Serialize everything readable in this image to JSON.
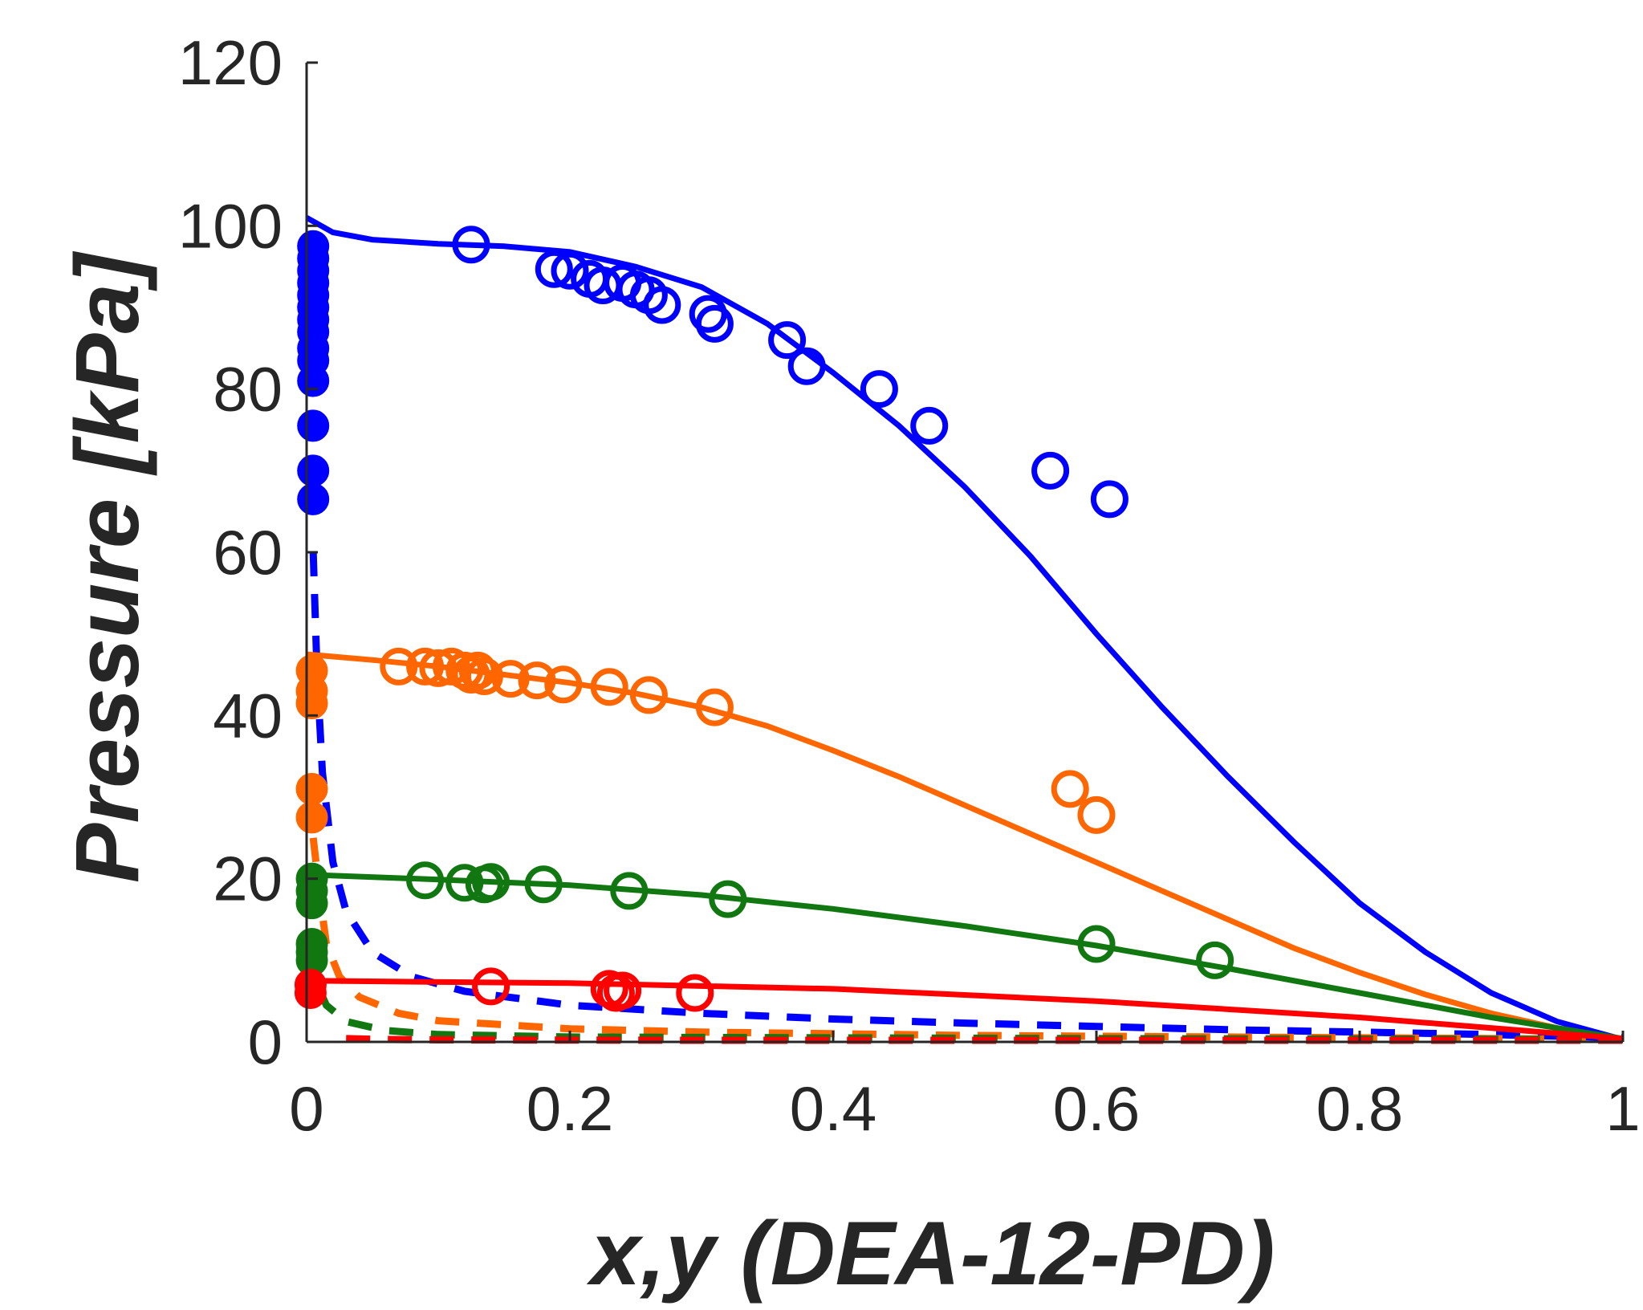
{
  "chart_data": {
    "type": "line",
    "title": "",
    "xlabel": "x,y (DEA-12-PD)",
    "ylabel": "Pressure [kPa]",
    "xlim": [
      0,
      1
    ],
    "ylim": [
      0,
      120
    ],
    "xticks": [
      0,
      0.2,
      0.4,
      0.6,
      0.8,
      1
    ],
    "xtick_labels": [
      "0",
      "0.2",
      "0.4",
      "0.6",
      "0.8",
      "1"
    ],
    "yticks": [
      0,
      20,
      40,
      60,
      80,
      100,
      120
    ],
    "ytick_labels": [
      "0",
      "20",
      "40",
      "60",
      "80",
      "100",
      "120"
    ],
    "series": [
      {
        "name": "blue",
        "color": "#0000ff",
        "bubble_curve": [
          [
            0,
            101
          ],
          [
            0.02,
            99.2
          ],
          [
            0.05,
            98.3
          ],
          [
            0.1,
            97.8
          ],
          [
            0.15,
            97.5
          ],
          [
            0.2,
            96.8
          ],
          [
            0.25,
            95.0
          ],
          [
            0.3,
            92.5
          ],
          [
            0.35,
            88.0
          ],
          [
            0.4,
            82.0
          ],
          [
            0.45,
            75.5
          ],
          [
            0.5,
            68.0
          ],
          [
            0.55,
            59.5
          ],
          [
            0.6,
            50.0
          ],
          [
            0.65,
            41.0
          ],
          [
            0.7,
            32.5
          ],
          [
            0.75,
            24.5
          ],
          [
            0.8,
            17.0
          ],
          [
            0.85,
            11.0
          ],
          [
            0.9,
            6.0
          ],
          [
            0.95,
            2.5
          ],
          [
            1,
            0.3
          ]
        ],
        "dew_curve": [
          [
            0.005,
            60
          ],
          [
            0.008,
            45
          ],
          [
            0.012,
            33
          ],
          [
            0.02,
            22
          ],
          [
            0.03,
            16
          ],
          [
            0.05,
            11
          ],
          [
            0.08,
            8
          ],
          [
            0.12,
            6.2
          ],
          [
            0.2,
            4.5
          ],
          [
            0.3,
            3.5
          ],
          [
            0.4,
            2.8
          ],
          [
            0.5,
            2.3
          ],
          [
            0.6,
            1.9
          ],
          [
            0.7,
            1.5
          ],
          [
            0.8,
            1.2
          ],
          [
            0.9,
            0.9
          ],
          [
            1,
            0.5
          ]
        ],
        "liquid_points": [
          [
            0.125,
            97.7
          ],
          [
            0.188,
            94.7
          ],
          [
            0.2,
            94.5
          ],
          [
            0.215,
            93.5
          ],
          [
            0.225,
            92.7
          ],
          [
            0.24,
            93.0
          ],
          [
            0.25,
            92.2
          ],
          [
            0.26,
            91.5
          ],
          [
            0.27,
            90.3
          ],
          [
            0.305,
            89.2
          ],
          [
            0.31,
            88.0
          ],
          [
            0.365,
            86.0
          ],
          [
            0.38,
            82.8
          ],
          [
            0.435,
            80.0
          ],
          [
            0.473,
            75.5
          ],
          [
            0.565,
            70.0
          ],
          [
            0.61,
            66.5
          ]
        ],
        "vapor_points": [
          [
            0.005,
            97.5
          ],
          [
            0.005,
            96.0
          ],
          [
            0.005,
            94.5
          ],
          [
            0.005,
            93.0
          ],
          [
            0.005,
            91.5
          ],
          [
            0.005,
            90.0
          ],
          [
            0.005,
            88.5
          ],
          [
            0.005,
            87.0
          ],
          [
            0.005,
            85.0
          ],
          [
            0.005,
            83.5
          ],
          [
            0.005,
            81.0
          ],
          [
            0.005,
            75.5
          ],
          [
            0.005,
            70.0
          ],
          [
            0.005,
            66.5
          ]
        ]
      },
      {
        "name": "orange",
        "color": "#ff6600",
        "bubble_curve": [
          [
            0,
            47.5
          ],
          [
            0.05,
            46.8
          ],
          [
            0.1,
            46.0
          ],
          [
            0.15,
            45.0
          ],
          [
            0.2,
            44.0
          ],
          [
            0.25,
            42.7
          ],
          [
            0.3,
            41.0
          ],
          [
            0.35,
            38.7
          ],
          [
            0.4,
            35.7
          ],
          [
            0.45,
            32.5
          ],
          [
            0.5,
            29.0
          ],
          [
            0.55,
            25.5
          ],
          [
            0.6,
            22.0
          ],
          [
            0.65,
            18.5
          ],
          [
            0.7,
            15.0
          ],
          [
            0.75,
            11.5
          ],
          [
            0.8,
            8.5
          ],
          [
            0.85,
            5.8
          ],
          [
            0.9,
            3.5
          ],
          [
            0.95,
            1.7
          ],
          [
            1,
            0.3
          ]
        ],
        "dew_curve": [
          [
            0.005,
            25
          ],
          [
            0.01,
            18
          ],
          [
            0.015,
            12
          ],
          [
            0.025,
            8
          ],
          [
            0.04,
            5.5
          ],
          [
            0.07,
            3.5
          ],
          [
            0.1,
            2.6
          ],
          [
            0.2,
            1.6
          ],
          [
            0.3,
            1.2
          ],
          [
            0.4,
            1.0
          ],
          [
            0.5,
            0.8
          ],
          [
            0.6,
            0.7
          ],
          [
            0.7,
            0.6
          ],
          [
            0.8,
            0.5
          ],
          [
            0.9,
            0.4
          ],
          [
            1,
            0.3
          ]
        ],
        "liquid_points": [
          [
            0.07,
            46.0
          ],
          [
            0.09,
            46.0
          ],
          [
            0.1,
            45.8
          ],
          [
            0.11,
            46.0
          ],
          [
            0.12,
            45.5
          ],
          [
            0.125,
            45.0
          ],
          [
            0.13,
            45.5
          ],
          [
            0.135,
            44.8
          ],
          [
            0.155,
            44.5
          ],
          [
            0.175,
            44.3
          ],
          [
            0.195,
            43.8
          ],
          [
            0.23,
            43.5
          ],
          [
            0.26,
            42.5
          ],
          [
            0.31,
            41.0
          ],
          [
            0.58,
            31.0
          ],
          [
            0.6,
            27.8
          ]
        ],
        "vapor_points": [
          [
            0.004,
            45.5
          ],
          [
            0.004,
            43.0
          ],
          [
            0.004,
            41.5
          ],
          [
            0.004,
            31.0
          ],
          [
            0.004,
            27.5
          ]
        ]
      },
      {
        "name": "green",
        "color": "#117711",
        "bubble_curve": [
          [
            0,
            20.5
          ],
          [
            0.1,
            19.9
          ],
          [
            0.2,
            19.2
          ],
          [
            0.3,
            18.0
          ],
          [
            0.4,
            16.3
          ],
          [
            0.5,
            14.2
          ],
          [
            0.6,
            11.8
          ],
          [
            0.7,
            9.0
          ],
          [
            0.8,
            6.0
          ],
          [
            0.9,
            3.0
          ],
          [
            1,
            0.4
          ]
        ],
        "dew_curve": [
          [
            0.004,
            11
          ],
          [
            0.008,
            7
          ],
          [
            0.015,
            4.5
          ],
          [
            0.03,
            2.5
          ],
          [
            0.06,
            1.4
          ],
          [
            0.1,
            0.9
          ],
          [
            0.2,
            0.6
          ],
          [
            0.4,
            0.5
          ],
          [
            0.6,
            0.4
          ],
          [
            0.8,
            0.35
          ],
          [
            1,
            0.3
          ]
        ],
        "liquid_points": [
          [
            0.09,
            19.8
          ],
          [
            0.12,
            19.5
          ],
          [
            0.135,
            19.3
          ],
          [
            0.14,
            19.6
          ],
          [
            0.18,
            19.3
          ],
          [
            0.245,
            18.5
          ],
          [
            0.32,
            17.5
          ],
          [
            0.6,
            12.0
          ],
          [
            0.69,
            10.0
          ]
        ],
        "vapor_points": [
          [
            0.004,
            20.0
          ],
          [
            0.004,
            18.5
          ],
          [
            0.004,
            17.0
          ],
          [
            0.004,
            12.0
          ],
          [
            0.004,
            11.0
          ],
          [
            0.004,
            10.0
          ]
        ]
      },
      {
        "name": "red",
        "color": "#ff0000",
        "bubble_curve": [
          [
            0,
            7.5
          ],
          [
            0.2,
            7.2
          ],
          [
            0.4,
            6.5
          ],
          [
            0.6,
            5.0
          ],
          [
            0.8,
            3.0
          ],
          [
            1,
            0.4
          ]
        ],
        "dew_curve": [
          [
            0.03,
            0.4
          ],
          [
            0.06,
            0.3
          ],
          [
            0.1,
            0.25
          ],
          [
            0.3,
            0.2
          ],
          [
            0.6,
            0.2
          ],
          [
            1,
            0.2
          ]
        ],
        "liquid_points": [
          [
            0.14,
            6.8
          ],
          [
            0.23,
            6.5
          ],
          [
            0.235,
            6.0
          ],
          [
            0.24,
            6.3
          ],
          [
            0.295,
            6.0
          ]
        ],
        "vapor_points": [
          [
            0.003,
            7.0
          ],
          [
            0.003,
            6.0
          ]
        ]
      }
    ]
  }
}
